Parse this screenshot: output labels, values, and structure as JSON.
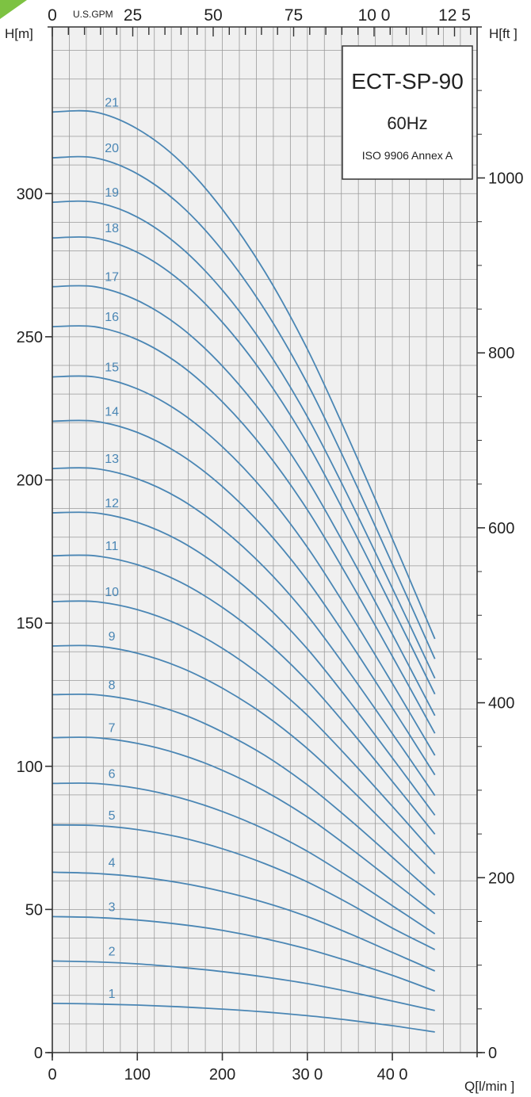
{
  "chart_data": {
    "type": "line",
    "title_box": {
      "model": "ECT-SP-90",
      "frequency": "60Hz",
      "standard": "ISO 9906 Annex A"
    },
    "ylabel_left": "H[m]",
    "ylabel_right": "H[ft ]",
    "xlabel_bottom": "Q[l/min ]",
    "top_axis_unit": "U.S.GPM",
    "xlim": [
      0,
      500
    ],
    "ylim": [
      0,
      345
    ],
    "x_ticks": [
      {
        "value": 0,
        "label": "0"
      },
      {
        "value": 100,
        "label": "100"
      },
      {
        "value": 200,
        "label": "200"
      },
      {
        "value": 300,
        "label": "30 0"
      },
      {
        "value": 400,
        "label": "40 0"
      }
    ],
    "y_ticks_left": [
      {
        "value": 0,
        "label": "0"
      },
      {
        "value": 50,
        "label": "50"
      },
      {
        "value": 100,
        "label": "100"
      },
      {
        "value": 150,
        "label": "150"
      },
      {
        "value": 200,
        "label": "200"
      },
      {
        "value": 250,
        "label": "250"
      },
      {
        "value": 300,
        "label": "300"
      }
    ],
    "y_ticks_right": [
      {
        "value": 0,
        "label": "0"
      },
      {
        "value": 200,
        "label": "200"
      },
      {
        "value": 400,
        "label": "400"
      },
      {
        "value": 600,
        "label": "600"
      },
      {
        "value": 800,
        "label": "800"
      },
      {
        "value": 1000,
        "label": "1000"
      }
    ],
    "top_ticks": [
      {
        "value": 0,
        "label": "0"
      },
      {
        "value": 25,
        "label": "25"
      },
      {
        "value": 50,
        "label": "50"
      },
      {
        "value": 75,
        "label": "75"
      },
      {
        "value": 100,
        "label": "10 0"
      },
      {
        "value": 125,
        "label": "12 5"
      }
    ],
    "curve_q": [
      0,
      50,
      100,
      150,
      200,
      250,
      300,
      350,
      400,
      450
    ],
    "curve_shape": [
      1.0,
      1.0,
      0.99,
      0.96,
      0.91,
      0.84,
      0.75,
      0.64,
      0.54,
      0.43
    ],
    "curve_shape_low": [
      1.0,
      0.99,
      0.98,
      0.96,
      0.93,
      0.89,
      0.83,
      0.75,
      0.66,
      0.56
    ],
    "series": [
      {
        "name": "1",
        "shut_off_head": 17.2,
        "values": [
          17.2,
          17.0,
          16.6,
          16.0,
          15.2,
          14.2,
          12.9,
          11.3,
          9.4,
          7.2
        ]
      },
      {
        "name": "2",
        "shut_off_head": 32,
        "values": [
          32,
          31.7,
          31.0,
          29.8,
          28.3,
          26.4,
          24.1,
          21.2,
          18.0,
          14.7
        ]
      },
      {
        "name": "3",
        "shut_off_head": 47.5,
        "values": [
          47.5,
          47.2,
          46.3,
          44.8,
          42.7,
          39.8,
          36.2,
          31.8,
          27.0,
          21.5
        ]
      },
      {
        "name": "4",
        "shut_off_head": 63,
        "values": [
          63,
          62.6,
          61.4,
          59.3,
          56.3,
          52.4,
          47.5,
          41.5,
          35.0,
          28.5
        ]
      },
      {
        "name": "5",
        "shut_off_head": 79.5,
        "values": [
          79.5,
          79.3,
          77.9,
          75.2,
          71.2,
          66.0,
          59.6,
          51.9,
          43.5,
          36.0
        ]
      },
      {
        "name": "6",
        "shut_off_head": 94,
        "values": [
          94,
          94.0,
          92.3,
          89.0,
          84.2,
          78.0,
          70.3,
          61.1,
          51.3,
          41.5
        ]
      },
      {
        "name": "7",
        "shut_off_head": 110,
        "values": [
          110,
          110.0,
          108.0,
          104.2,
          98.6,
          91.3,
          82.3,
          71.5,
          60.0,
          48.5
        ]
      },
      {
        "name": "8",
        "shut_off_head": 125,
        "values": [
          125,
          125.0,
          122.8,
          118.5,
          112.0,
          103.8,
          93.5,
          81.3,
          68.2,
          55.0
        ]
      },
      {
        "name": "9",
        "shut_off_head": 142,
        "values": [
          142,
          142.0,
          139.5,
          134.6,
          127.3,
          117.9,
          106.2,
          92.3,
          77.5,
          62.5
        ]
      },
      {
        "name": "10",
        "shut_off_head": 157.5,
        "values": [
          157.5,
          157.5,
          154.7,
          149.3,
          141.2,
          130.7,
          117.8,
          102.4,
          86.0,
          69.3
        ]
      },
      {
        "name": "11",
        "shut_off_head": 173.5,
        "values": [
          173.5,
          173.5,
          170.4,
          164.4,
          155.5,
          144.0,
          129.8,
          112.8,
          94.7,
          76.3
        ]
      },
      {
        "name": "12",
        "shut_off_head": 188.5,
        "values": [
          188.5,
          188.5,
          185.2,
          178.7,
          169.0,
          156.5,
          141.0,
          122.5,
          102.9,
          82.9
        ]
      },
      {
        "name": "13",
        "shut_off_head": 204,
        "values": [
          204,
          204.0,
          200.4,
          193.4,
          182.9,
          169.3,
          152.6,
          132.6,
          111.4,
          89.8
        ]
      },
      {
        "name": "14",
        "shut_off_head": 220.5,
        "values": [
          220.5,
          220.5,
          216.6,
          209.0,
          197.7,
          183.0,
          164.9,
          143.3,
          120.4,
          97.0
        ]
      },
      {
        "name": "15",
        "shut_off_head": 236,
        "values": [
          236,
          236.0,
          231.8,
          223.7,
          211.6,
          195.9,
          176.5,
          153.4,
          128.9,
          103.8
        ]
      },
      {
        "name": "16",
        "shut_off_head": 253.5,
        "values": [
          253.5,
          253.5,
          249.0,
          240.3,
          227.3,
          210.4,
          189.6,
          164.8,
          138.4,
          111.5
        ]
      },
      {
        "name": "17",
        "shut_off_head": 267.5,
        "values": [
          267.5,
          267.5,
          262.7,
          253.5,
          239.8,
          222.0,
          200.1,
          173.9,
          146.1,
          117.7
        ]
      },
      {
        "name": "18",
        "shut_off_head": 284.5,
        "values": [
          284.5,
          284.5,
          279.5,
          269.7,
          255.1,
          236.1,
          212.8,
          184.9,
          155.3,
          125.2
        ]
      },
      {
        "name": "19",
        "shut_off_head": 297,
        "values": [
          297,
          297.0,
          291.8,
          281.5,
          266.3,
          246.5,
          222.1,
          193.1,
          162.2,
          130.7
        ]
      },
      {
        "name": "20",
        "shut_off_head": 312.5,
        "values": [
          312.5,
          312.5,
          306.9,
          296.2,
          280.2,
          259.4,
          233.7,
          203.1,
          170.6,
          137.5
        ]
      },
      {
        "name": "21",
        "shut_off_head": 328.5,
        "values": [
          328.5,
          328.5,
          322.6,
          311.4,
          294.5,
          272.7,
          245.7,
          213.5,
          179.4,
          144.5
        ]
      }
    ],
    "grid": true,
    "colors": {
      "curve": "#4a86b4",
      "grid": "#9a9a9a",
      "plot_bg": "#f0f0f0",
      "accent": "#7dc242"
    }
  }
}
